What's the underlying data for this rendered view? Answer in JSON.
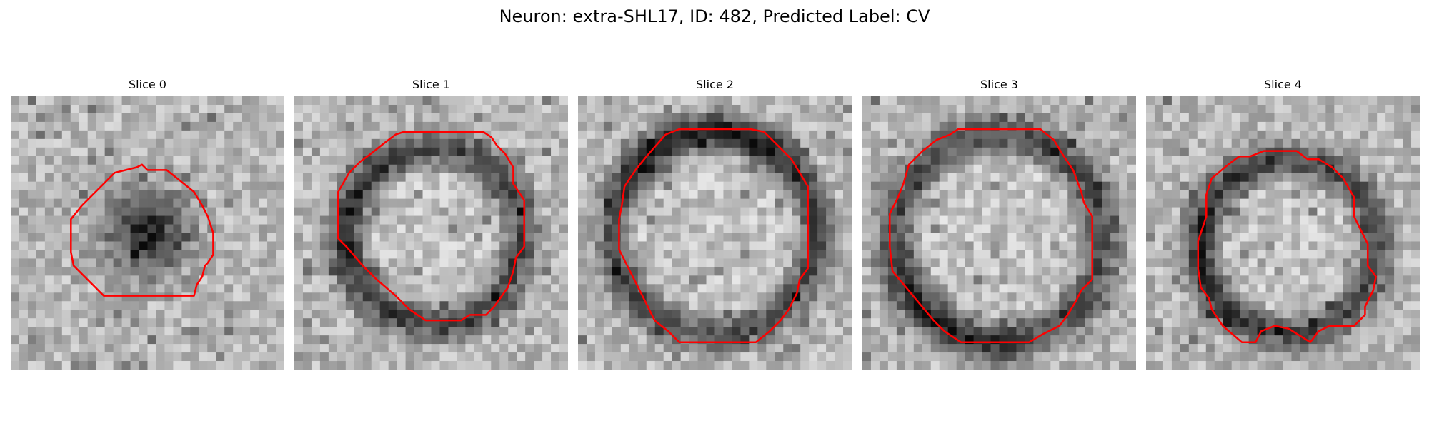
{
  "figure": {
    "title": "Neuron: extra-SHL17, ID: 482, Predicted Label: CV"
  },
  "slices": [
    {
      "label": "Slice 0"
    },
    {
      "label": "Slice 1"
    },
    {
      "label": "Slice 2"
    },
    {
      "label": "Slice 3"
    },
    {
      "label": "Slice 4"
    }
  ],
  "colors": {
    "contour": "#ff0000",
    "background": "#ffffff",
    "dark_pixel": "#0e0e0e",
    "light_pixel": "#f2f2f2"
  }
}
